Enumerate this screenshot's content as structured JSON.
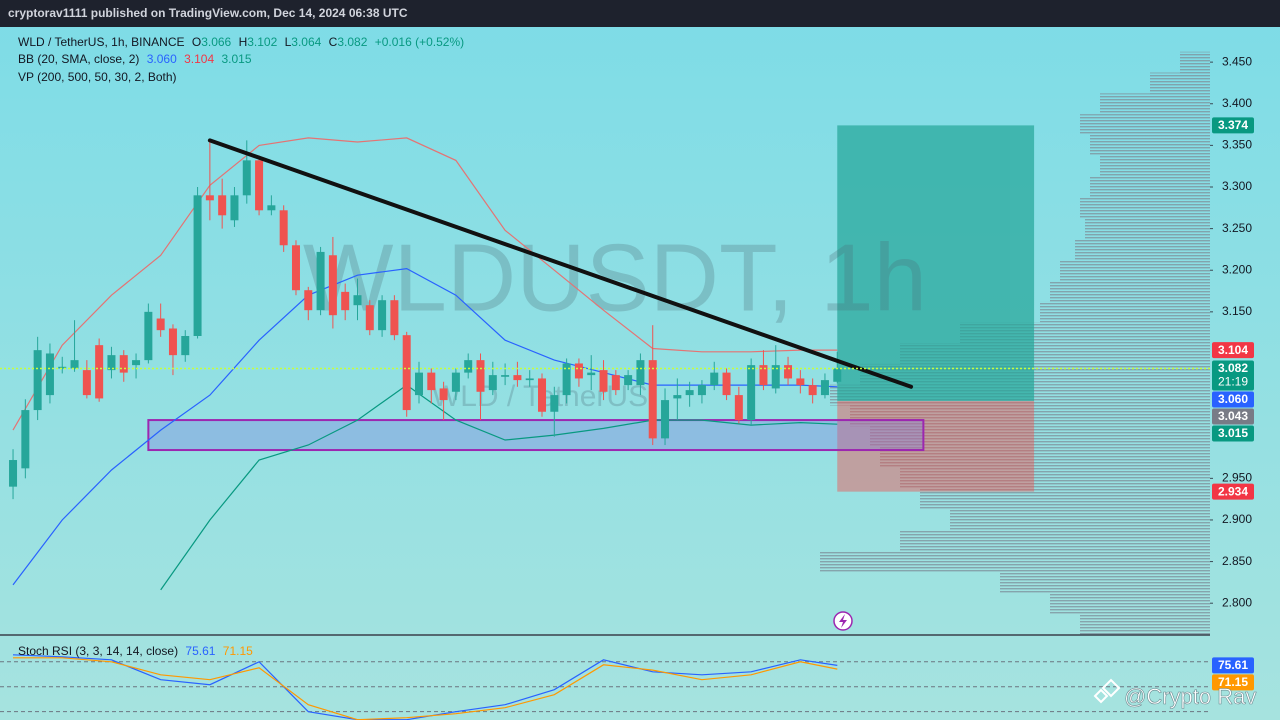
{
  "header": {
    "published": "cryptorav1111 published on TradingView.com, Dec 14, 2024 06:38 UTC"
  },
  "footer": {
    "handle": "@Crypto Rav"
  },
  "chart_data": {
    "type": "candlestick",
    "watermark": {
      "ticker": "WLDUSDT, 1h",
      "pair": "WLD / TetherUS"
    },
    "legend": {
      "symbol": "WLD / TetherUS, 1h, BINANCE",
      "ohlc": [
        {
          "label": "O",
          "value": 3.066
        },
        {
          "label": "H",
          "value": 3.102
        },
        {
          "label": "L",
          "value": 3.064
        },
        {
          "label": "C",
          "value": 3.082
        }
      ],
      "change": "+0.016 (+0.52%)",
      "bb_title": "BB (20, SMA, close, 2)",
      "bb_values": [
        {
          "value": 3.06,
          "label": "3.060"
        },
        3.104,
        3.015
      ],
      "vp_title": "VP (200, 500, 50, 30, 2, Both)"
    },
    "xlim": [
      -1.06,
      97.3
    ],
    "ylim": [
      2.763,
      3.491
    ],
    "yticks": [
      {
        "value": 3.45,
        "label": "3.450"
      },
      {
        "value": 3.4,
        "label": "3.400"
      },
      {
        "value": 3.35,
        "label": "3.350"
      },
      {
        "value": 3.3,
        "label": "3.300"
      },
      {
        "value": 3.25,
        "label": "3.250"
      },
      {
        "value": 3.2,
        "label": "3.200"
      },
      {
        "value": 3.15,
        "label": "3.150"
      },
      {
        "value": 2.95,
        "label": "2.950"
      },
      {
        "value": 2.9,
        "label": "2.900"
      },
      {
        "value": 2.85,
        "label": "2.850"
      },
      {
        "value": 2.8,
        "label": "2.800"
      }
    ],
    "up_color": "#26a69a",
    "down_color": "#ef5350",
    "open": [
      2.94,
      2.962,
      3.032,
      3.05,
      3.082,
      3.082,
      3.08,
      3.11,
      3.08,
      3.098,
      3.086,
      3.092,
      3.142,
      3.13,
      3.098,
      3.121,
      3.29,
      3.29,
      3.26,
      3.29,
      3.332,
      3.272,
      3.272,
      3.23,
      3.176,
      3.152,
      3.218,
      3.174,
      3.158,
      3.158,
      3.128,
      3.164,
      3.122,
      3.05,
      3.077,
      3.058,
      3.054,
      3.077,
      3.092,
      3.056,
      3.072,
      3.074,
      3.068,
      3.07,
      3.03,
      3.05,
      3.088,
      3.074,
      3.08,
      3.074,
      3.062,
      3.062,
      3.092,
      2.998,
      3.046,
      3.05,
      3.05,
      3.062,
      3.077,
      3.05,
      3.02,
      3.086,
      3.058,
      3.086,
      3.07,
      3.062,
      3.05,
      3.066
    ],
    "high": [
      2.985,
      3.045,
      3.12,
      3.112,
      3.096,
      3.14,
      3.092,
      3.118,
      3.108,
      3.104,
      3.1,
      3.16,
      3.16,
      3.135,
      3.128,
      3.3,
      3.356,
      3.31,
      3.3,
      3.356,
      3.338,
      3.29,
      3.278,
      3.236,
      3.18,
      3.228,
      3.24,
      3.184,
      3.19,
      3.164,
      3.17,
      3.17,
      3.126,
      3.09,
      3.082,
      3.066,
      3.082,
      3.1,
      3.1,
      3.09,
      3.088,
      3.09,
      3.08,
      3.076,
      3.06,
      3.094,
      3.094,
      3.098,
      3.092,
      3.08,
      3.08,
      3.1,
      3.134,
      3.058,
      3.07,
      3.066,
      3.068,
      3.09,
      3.082,
      3.06,
      3.094,
      3.104,
      3.11,
      3.096,
      3.08,
      3.07,
      3.076,
      3.102
    ],
    "low": [
      2.925,
      2.95,
      3.02,
      3.04,
      3.076,
      3.078,
      3.046,
      3.042,
      3.07,
      3.066,
      3.07,
      3.088,
      3.12,
      3.074,
      3.09,
      3.118,
      3.26,
      3.25,
      3.252,
      3.28,
      3.266,
      3.266,
      3.222,
      3.17,
      3.14,
      3.146,
      3.13,
      3.14,
      3.14,
      3.122,
      3.12,
      3.116,
      3.024,
      3.04,
      3.04,
      3.02,
      3.044,
      3.07,
      3.02,
      3.05,
      3.062,
      3.06,
      3.06,
      3.024,
      3.0,
      3.04,
      3.06,
      3.056,
      3.044,
      3.05,
      3.056,
      3.05,
      2.99,
      2.99,
      3.02,
      3.036,
      3.04,
      3.056,
      3.044,
      3.016,
      3.014,
      3.056,
      3.052,
      3.062,
      3.052,
      3.04,
      3.046,
      3.064
    ],
    "close": [
      2.972,
      3.032,
      3.104,
      3.1,
      3.084,
      3.092,
      3.05,
      3.046,
      3.098,
      3.077,
      3.092,
      3.15,
      3.128,
      3.098,
      3.121,
      3.29,
      3.284,
      3.266,
      3.29,
      3.332,
      3.272,
      3.278,
      3.23,
      3.176,
      3.152,
      3.222,
      3.146,
      3.152,
      3.17,
      3.128,
      3.164,
      3.122,
      3.032,
      3.077,
      3.056,
      3.044,
      3.077,
      3.092,
      3.054,
      3.074,
      3.074,
      3.068,
      3.07,
      3.03,
      3.05,
      3.088,
      3.07,
      3.077,
      3.054,
      3.056,
      3.074,
      3.092,
      2.998,
      3.044,
      3.05,
      3.056,
      3.062,
      3.077,
      3.05,
      3.02,
      3.086,
      3.062,
      3.086,
      3.07,
      3.062,
      3.05,
      3.068,
      3.082
    ],
    "bollinger": {
      "x": [
        0,
        4,
        8,
        12,
        16,
        20,
        24,
        28,
        32,
        36,
        40,
        44,
        48,
        52,
        56,
        60,
        64,
        67
      ],
      "series": [
        {
          "color": "#e57373",
          "values": [
            3.008,
            3.11,
            3.17,
            3.218,
            3.302,
            3.35,
            3.359,
            3.354,
            3.359,
            3.332,
            3.248,
            3.2,
            3.152,
            3.106,
            3.102,
            3.102,
            3.104,
            3.104
          ]
        },
        {
          "color": "#2962ff",
          "values": [
            2.822,
            2.9,
            2.96,
            3.008,
            3.05,
            3.116,
            3.17,
            3.194,
            3.202,
            3.17,
            3.116,
            3.092,
            3.077,
            3.062,
            3.062,
            3.062,
            3.062,
            3.06
          ]
        },
        {
          "color": "#089981",
          "values": [
            null,
            null,
            null,
            2.816,
            2.9,
            2.972,
            2.99,
            3.02,
            3.062,
            3.02,
            2.996,
            3.002,
            3.01,
            3.02,
            3.02,
            3.014,
            3.017,
            3.015
          ]
        }
      ]
    },
    "trendline": {
      "x": [
        16,
        73
      ],
      "values": [
        3.356,
        3.06
      ],
      "color": "#111111"
    },
    "zone": {
      "x": [
        11,
        74
      ],
      "low": 2.984,
      "high": 3.02,
      "color": "#9c27b0"
    },
    "position": {
      "x": [
        67,
        83
      ],
      "entry": 3.043,
      "target": 3.374,
      "stop": 2.934
    },
    "price_line": {
      "value": 3.082,
      "color": "#c6ff3d"
    },
    "volume_profile": {
      "prices": [
        3.45,
        3.425,
        3.4,
        3.375,
        3.35,
        3.325,
        3.3,
        3.275,
        3.25,
        3.225,
        3.2,
        3.175,
        3.15,
        3.125,
        3.1,
        3.075,
        3.05,
        3.025,
        3.0,
        2.975,
        2.95,
        2.925,
        2.9,
        2.875,
        2.85,
        2.825,
        2.8,
        2.775
      ],
      "volumes": [
        30,
        60,
        110,
        130,
        120,
        110,
        120,
        130,
        125,
        135,
        150,
        160,
        170,
        250,
        310,
        350,
        380,
        360,
        340,
        330,
        310,
        290,
        260,
        310,
        390,
        210,
        160,
        130
      ]
    },
    "badges": [
      {
        "value": 3.374,
        "color": "#089981"
      },
      {
        "value": 3.104,
        "color": "#f23645"
      },
      {
        "value": 3.082,
        "sub": "21:19",
        "color": "#089981"
      },
      {
        "value": 3.06,
        "label": "3.060",
        "color": "#2962ff"
      },
      {
        "value": 3.043,
        "color": "#787b86"
      },
      {
        "value": 3.015,
        "color": "#089981"
      },
      {
        "value": 2.934,
        "color": "#f23645"
      }
    ],
    "stoch_rsi": {
      "title": "Stoch RSI (3, 3, 14, 14, close)",
      "ylim": [
        10,
        111
      ],
      "bands": [
        80,
        50,
        20
      ],
      "x": [
        0,
        4,
        8,
        12,
        16,
        20,
        24,
        28,
        32,
        36,
        40,
        44,
        48,
        52,
        56,
        60,
        64,
        67
      ],
      "series": [
        {
          "color": "#2962ff",
          "values": [
            88.4,
            86.0,
            82.4,
            58.4,
            52.4,
            80,
            20,
            10.4,
            10.4,
            20,
            28.4,
            46.4,
            82.4,
            68.0,
            64.4,
            68.0,
            82.4,
            75.61
          ]
        },
        {
          "color": "#ff9800",
          "values": [
            84.8,
            84.8,
            80,
            64.4,
            58.4,
            72.8,
            28.4,
            10.4,
            12.8,
            17.6,
            24.8,
            40.4,
            76.4,
            70,
            58.4,
            64.4,
            80,
            71.15
          ]
        }
      ]
    }
  }
}
